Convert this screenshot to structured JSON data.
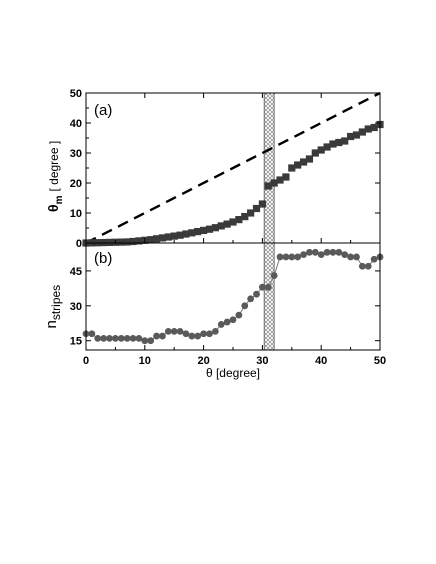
{
  "chart_data": [
    {
      "type": "scatter",
      "panel_label": "(a)",
      "xlabel": "θ [degree]",
      "ylabel": "θm [ degree ]",
      "ylabel_main": "θ",
      "ylabel_sub": "m",
      "ylabel_unit": "[ degree ]",
      "xlim": [
        0,
        50
      ],
      "ylim": [
        0,
        50
      ],
      "xticks": [
        "0",
        "10",
        "20",
        "30",
        "40",
        "50"
      ],
      "yticks": [
        "0",
        "10",
        "20",
        "30",
        "40",
        "50"
      ],
      "shaded_band": [
        30.3,
        32.0
      ],
      "reference_line": {
        "style": "dashed",
        "x": [
          0,
          50
        ],
        "y": [
          0,
          50
        ]
      },
      "series": [
        {
          "marker": "square",
          "x": [
            0,
            1,
            2,
            3,
            4,
            5,
            6,
            7,
            8,
            9,
            10,
            11,
            12,
            13,
            14,
            15,
            16,
            17,
            18,
            19,
            20,
            21,
            22,
            23,
            24,
            25,
            26,
            27,
            28,
            29,
            30,
            31,
            32,
            33,
            34,
            35,
            36,
            37,
            38,
            39,
            40,
            41,
            42,
            43,
            44,
            45,
            46,
            47,
            48,
            49,
            50
          ],
          "y": [
            0.0,
            0.05,
            0.1,
            0.15,
            0.2,
            0.25,
            0.3,
            0.35,
            0.5,
            0.7,
            0.9,
            1.1,
            1.4,
            1.7,
            2.0,
            2.3,
            2.6,
            3.0,
            3.4,
            3.8,
            4.2,
            4.6,
            5.1,
            5.7,
            6.3,
            7.0,
            7.8,
            8.8,
            10.0,
            11.5,
            13.0,
            19.0,
            20.0,
            21.0,
            22.0,
            25.0,
            26.0,
            27.0,
            28.0,
            30.0,
            31.0,
            32.0,
            33.0,
            33.5,
            34.0,
            35.5,
            36.0,
            37.0,
            38.0,
            38.5,
            39.5
          ]
        }
      ]
    },
    {
      "type": "line",
      "panel_label": "(b)",
      "xlabel": "θ [degree]",
      "ylabel": "nstripes",
      "ylabel_main": "n",
      "ylabel_sub": "stripes",
      "xlim": [
        0,
        50
      ],
      "ylim": [
        11,
        57
      ],
      "xticks": [
        "0",
        "10",
        "20",
        "30",
        "40",
        "50"
      ],
      "yticks": [
        "15",
        "30",
        "45"
      ],
      "ytick_values": [
        15,
        30,
        45
      ],
      "shaded_band": [
        30.3,
        32.0
      ],
      "series": [
        {
          "marker": "circle",
          "x": [
            0,
            1,
            2,
            3,
            4,
            5,
            6,
            7,
            8,
            9,
            10,
            11,
            12,
            13,
            14,
            15,
            16,
            17,
            18,
            19,
            20,
            21,
            22,
            23,
            24,
            25,
            26,
            27,
            28,
            29,
            30,
            31,
            32,
            33,
            34,
            35,
            36,
            37,
            38,
            39,
            40,
            41,
            42,
            43,
            44,
            45,
            46,
            47,
            48,
            49,
            50
          ],
          "y": [
            18,
            18,
            16,
            16,
            16,
            16,
            16,
            16,
            16,
            16,
            15,
            15,
            17,
            17,
            19,
            19,
            19,
            18,
            17,
            17,
            18,
            18,
            19,
            22,
            23,
            24,
            26,
            30,
            33,
            35,
            38,
            38,
            43,
            51,
            51,
            51,
            51,
            52,
            53,
            53,
            52,
            53,
            53,
            53,
            52,
            51,
            51,
            47,
            47,
            50,
            51
          ]
        }
      ]
    }
  ]
}
